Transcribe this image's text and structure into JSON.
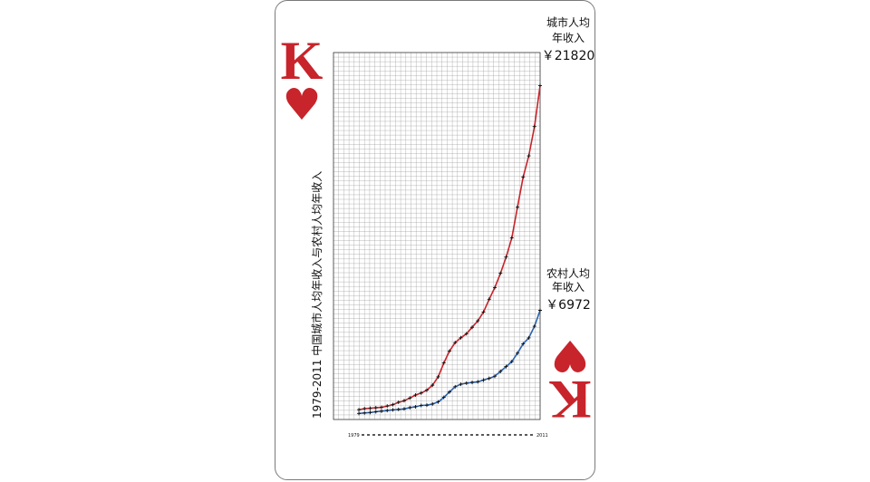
{
  "card": {
    "rank": "K",
    "suit_symbol": "♥",
    "suit_color": "#c8242b"
  },
  "chart_data": {
    "type": "line",
    "title": "1979-2011 中国城市人均年收入与农村人均年收入",
    "x_start_label": "1979",
    "x_end_label": "2011",
    "x": [
      1979,
      1980,
      1981,
      1982,
      1983,
      1984,
      1985,
      1986,
      1987,
      1988,
      1989,
      1990,
      1991,
      1992,
      1993,
      1994,
      1995,
      1996,
      1997,
      1998,
      1999,
      2000,
      2001,
      2002,
      2003,
      2004,
      2005,
      2006,
      2007,
      2008,
      2009,
      2010,
      2011
    ],
    "ylim": [
      0,
      24000
    ],
    "grid": true,
    "series": [
      {
        "name": "城市人均年收入",
        "color": "#c8242b",
        "values": [
          405,
          478,
          500,
          535,
          564,
          651,
          739,
          900,
          1002,
          1181,
          1374,
          1510,
          1701,
          2027,
          2577,
          3496,
          4283,
          4839,
          5160,
          5425,
          5854,
          6280,
          6860,
          7703,
          8472,
          9422,
          10493,
          11759,
          13786,
          15781,
          17175,
          19109,
          21820
        ]
      },
      {
        "name": "农村人均年收入",
        "color": "#2a64b0",
        "values": [
          160,
          191,
          223,
          270,
          310,
          355,
          398,
          424,
          463,
          545,
          602,
          686,
          709,
          784,
          922,
          1221,
          1578,
          1926,
          2090,
          2162,
          2210,
          2253,
          2366,
          2476,
          2622,
          2936,
          3255,
          3587,
          4140,
          4761,
          5153,
          5919,
          6972
        ]
      }
    ],
    "end_labels": [
      {
        "line1": "城市人均",
        "line2": "年收入",
        "value": "￥21820"
      },
      {
        "line1": "农村人均",
        "line2": "年收入",
        "value": "￥6972"
      }
    ]
  }
}
